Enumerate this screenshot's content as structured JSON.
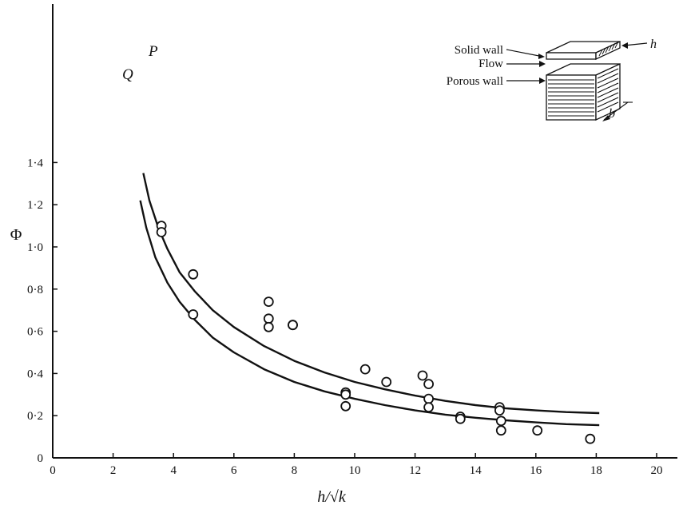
{
  "chart_data": {
    "type": "scatter",
    "xlabel": "h/√k",
    "ylabel": "Φ",
    "xlim": [
      0,
      21
    ],
    "ylim": [
      0,
      1.5
    ],
    "x_ticks": [
      0,
      2,
      4,
      6,
      8,
      10,
      12,
      14,
      16,
      18,
      20
    ],
    "x_tick_labels": [
      "0",
      "2",
      "4",
      "6",
      "8",
      "10",
      "12",
      "14",
      "16",
      "18",
      "20"
    ],
    "y_ticks": [
      0,
      0.2,
      0.4,
      0.6,
      0.8,
      1.0,
      1.2,
      1.4
    ],
    "y_tick_labels": [
      "0",
      "0·2",
      "0·4",
      "0·6",
      "0·8",
      "1·0",
      "1·2",
      "1·4"
    ],
    "grid": false,
    "points": [
      {
        "x": 3.6,
        "y": 1.1
      },
      {
        "x": 3.6,
        "y": 1.07
      },
      {
        "x": 4.65,
        "y": 0.87
      },
      {
        "x": 4.65,
        "y": 0.68
      },
      {
        "x": 7.15,
        "y": 0.74
      },
      {
        "x": 7.15,
        "y": 0.66
      },
      {
        "x": 7.15,
        "y": 0.62
      },
      {
        "x": 7.95,
        "y": 0.63
      },
      {
        "x": 7.95,
        "y": 0.63
      },
      {
        "x": 9.7,
        "y": 0.31
      },
      {
        "x": 9.7,
        "y": 0.3
      },
      {
        "x": 9.7,
        "y": 0.245
      },
      {
        "x": 10.35,
        "y": 0.42
      },
      {
        "x": 11.05,
        "y": 0.36
      },
      {
        "x": 12.25,
        "y": 0.39
      },
      {
        "x": 12.45,
        "y": 0.35
      },
      {
        "x": 12.45,
        "y": 0.28
      },
      {
        "x": 12.45,
        "y": 0.24
      },
      {
        "x": 13.5,
        "y": 0.195
      },
      {
        "x": 13.5,
        "y": 0.185
      },
      {
        "x": 14.8,
        "y": 0.24
      },
      {
        "x": 14.8,
        "y": 0.225
      },
      {
        "x": 14.85,
        "y": 0.175
      },
      {
        "x": 14.85,
        "y": 0.13
      },
      {
        "x": 16.05,
        "y": 0.13
      },
      {
        "x": 17.8,
        "y": 0.09
      }
    ],
    "curves": [
      {
        "name": "P",
        "x": [
          3.0,
          3.2,
          3.5,
          3.8,
          4.2,
          4.7,
          5.3,
          6.0,
          7.0,
          8.0,
          9.0,
          10.0,
          11.0,
          12.0,
          13.0,
          14.0,
          15.0,
          16.0,
          17.0,
          18.1
        ],
        "y": [
          1.35,
          1.22,
          1.09,
          0.99,
          0.88,
          0.79,
          0.7,
          0.62,
          0.53,
          0.46,
          0.405,
          0.36,
          0.325,
          0.295,
          0.27,
          0.25,
          0.235,
          0.225,
          0.217,
          0.212
        ]
      },
      {
        "name": "Q",
        "x": [
          2.9,
          3.1,
          3.4,
          3.8,
          4.2,
          4.7,
          5.3,
          6.0,
          7.0,
          8.0,
          9.0,
          10.0,
          11.0,
          12.0,
          13.0,
          14.0,
          15.0,
          16.0,
          17.0,
          18.1
        ],
        "y": [
          1.22,
          1.09,
          0.95,
          0.83,
          0.74,
          0.655,
          0.57,
          0.5,
          0.42,
          0.36,
          0.315,
          0.28,
          0.25,
          0.225,
          0.205,
          0.19,
          0.178,
          0.168,
          0.16,
          0.155
        ]
      }
    ]
  },
  "inset": {
    "solid_wall": "Solid wall",
    "flow": "Flow",
    "porous_wall": "Porous wall",
    "h": "h",
    "b": "b"
  }
}
